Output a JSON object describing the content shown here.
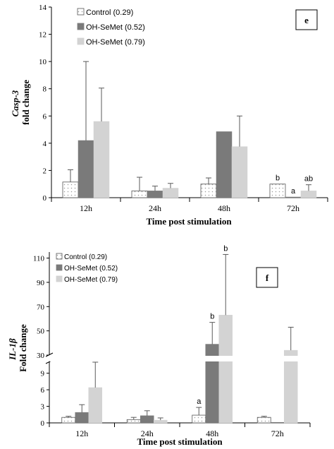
{
  "colors": {
    "control_fill": "#ffffff",
    "dots": "#9a9a9a",
    "semet052": "#7a7a7a",
    "semet079": "#d3d3d3",
    "axis": "#000000",
    "error": "#5a5a5a"
  },
  "chart_data": [
    {
      "type": "bar",
      "panel": "e",
      "ylabel_gene": "Casp-3",
      "ylabel_rest": "fold change",
      "xlabel": "Time post stimulation",
      "categories": [
        "12h",
        "24h",
        "48h",
        "72h"
      ],
      "ylim": [
        0,
        14
      ],
      "yticks": [
        0,
        2,
        4,
        6,
        8,
        10,
        12,
        14
      ],
      "legend_position": "top-left",
      "series": [
        {
          "name": "Control (0.29)",
          "values": [
            1.15,
            0.5,
            1.0,
            1.0
          ],
          "error": [
            0.9,
            1.0,
            0.45,
            0.0
          ],
          "labels": [
            "",
            "",
            "",
            "b"
          ]
        },
        {
          "name": "OH-SeMet (0.52)",
          "values": [
            4.2,
            0.5,
            4.85,
            0.05
          ],
          "error": [
            5.8,
            0.35,
            0.0,
            0.0
          ],
          "labels": [
            "",
            "",
            "",
            "a"
          ]
        },
        {
          "name": "OH-SeMet (0.79)",
          "values": [
            5.6,
            0.7,
            3.75,
            0.5
          ],
          "error": [
            2.45,
            0.35,
            2.25,
            0.45
          ],
          "labels": [
            "",
            "",
            "",
            "ab"
          ]
        }
      ]
    },
    {
      "type": "bar",
      "panel": "f",
      "ylabel_gene": "IL-1β",
      "ylabel_rest": "Fold change",
      "xlabel": "Time post stimulation",
      "categories": [
        "12h",
        "24h",
        "48h",
        "72h"
      ],
      "broken_axis": true,
      "ylim_lower": [
        0,
        11
      ],
      "yticks_lower": [
        0,
        3,
        6,
        9
      ],
      "ylim_upper": [
        30,
        115
      ],
      "yticks_upper": [
        30,
        50,
        70,
        90,
        110
      ],
      "legend_position": "top-left",
      "series": [
        {
          "name": "Control (0.29)",
          "values": [
            1.0,
            0.6,
            1.4,
            1.0
          ],
          "error": [
            0.2,
            0.4,
            1.4,
            0.2
          ],
          "labels": [
            "",
            "",
            "a",
            ""
          ]
        },
        {
          "name": "OH-SeMet (0.52)",
          "values": [
            1.9,
            1.3,
            39,
            0.05
          ],
          "error": [
            1.4,
            0.9,
            18,
            0.0
          ],
          "labels": [
            "",
            "",
            "b",
            ""
          ]
        },
        {
          "name": "OH-SeMet (0.79)",
          "values": [
            6.4,
            0.5,
            63,
            34
          ],
          "error": [
            4.6,
            0.4,
            50,
            19
          ],
          "labels": [
            "",
            "",
            "b",
            ""
          ]
        }
      ]
    }
  ]
}
